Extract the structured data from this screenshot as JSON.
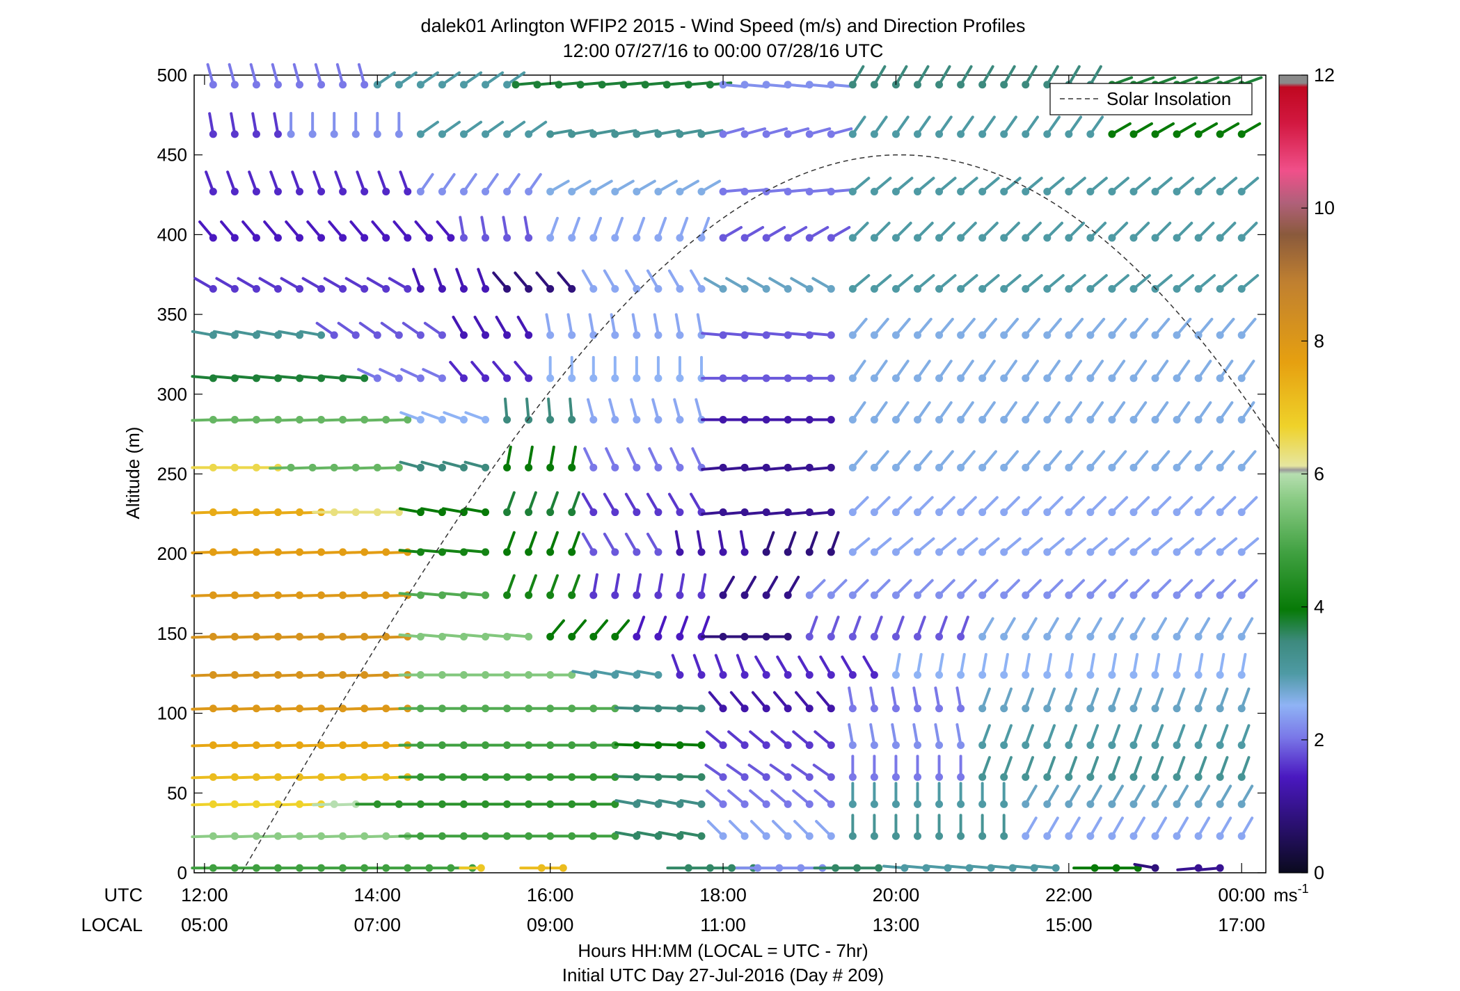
{
  "chart_data": {
    "type": "scatter",
    "title": "dalek01 Arlington WFIP2 2015 - Wind Speed (m/s) and Direction Profiles",
    "subtitle": "12:00 07/27/16 to 00:00 07/28/16  UTC",
    "ylabel": "Altitude (m)",
    "xlabel": "Hours HH:MM  (LOCAL = UTC - 7hr)",
    "xlabel2": "Initial UTC Day 27-Jul-2016 (Day # 209)",
    "xlim": [
      12,
      24
    ],
    "ylim": [
      0,
      500
    ],
    "x_ticks_utc": [
      "12:00",
      "14:00",
      "16:00",
      "18:00",
      "20:00",
      "22:00",
      "00:00"
    ],
    "x_ticks_local": [
      "05:00",
      "07:00",
      "09:00",
      "11:00",
      "13:00",
      "15:00",
      "17:00"
    ],
    "x_tick_values": [
      12,
      14,
      16,
      18,
      20,
      22,
      24
    ],
    "x_row_label_utc": "UTC",
    "x_row_label_local": "LOCAL",
    "y_ticks": [
      0,
      50,
      100,
      150,
      200,
      250,
      300,
      350,
      400,
      450,
      500
    ],
    "legend": {
      "label": "Solar Insolation",
      "placement": "top-right"
    },
    "colorbar": {
      "range": [
        0,
        12
      ],
      "ticks": [
        0,
        2,
        4,
        6,
        8,
        10,
        12
      ],
      "unit": "ms",
      "unit_exp": "-1"
    },
    "solar_insolation_curve": {
      "start_hour": 12.43,
      "peak_hour": 20.05,
      "peak_altitude_equiv": 450,
      "end_hour": 24.5,
      "end_altitude_equiv": 260
    },
    "profile_altitudes": [
      3,
      23,
      43,
      60,
      80,
      103,
      124,
      148,
      174,
      201,
      226,
      254,
      284,
      310,
      337,
      366,
      398,
      427,
      463,
      494
    ],
    "time_step_hours": 0.25,
    "row_descriptions": [
      {
        "altitude": 494,
        "segments": [
          [
            12.1,
            14.0,
            2.0,
            165
          ],
          [
            14.0,
            15.6,
            3.0,
            235
          ],
          [
            15.6,
            18.0,
            3.8,
            265
          ],
          [
            18.0,
            19.5,
            2.2,
            275
          ],
          [
            19.5,
            22.5,
            3.5,
            210
          ],
          [
            22.5,
            24.1,
            3.8,
            250
          ]
        ]
      },
      {
        "altitude": 463,
        "segments": [
          [
            12.1,
            13.0,
            1.6,
            170
          ],
          [
            13.0,
            14.5,
            2.2,
            180
          ],
          [
            14.5,
            16.0,
            3.0,
            235
          ],
          [
            16.0,
            18.0,
            3.2,
            260
          ],
          [
            18.0,
            19.5,
            2.0,
            255
          ],
          [
            19.5,
            22.5,
            3.0,
            215
          ],
          [
            22.5,
            24.1,
            4.0,
            240
          ]
        ]
      },
      {
        "altitude": 427,
        "segments": [
          [
            12.1,
            14.5,
            1.5,
            160
          ],
          [
            14.5,
            16.0,
            2.2,
            215
          ],
          [
            16.0,
            18.0,
            2.6,
            240
          ],
          [
            18.0,
            19.5,
            2.0,
            265
          ],
          [
            19.5,
            24.1,
            3.0,
            230
          ]
        ]
      },
      {
        "altitude": 398,
        "segments": [
          [
            12.1,
            15.0,
            1.4,
            140
          ],
          [
            15.0,
            16.0,
            1.8,
            170
          ],
          [
            16.0,
            18.0,
            2.4,
            200
          ],
          [
            18.0,
            19.5,
            1.8,
            240
          ],
          [
            19.5,
            24.1,
            3.0,
            225
          ]
        ]
      },
      {
        "altitude": 366,
        "segments": [
          [
            12.1,
            14.5,
            1.6,
            120
          ],
          [
            14.5,
            15.5,
            1.3,
            160
          ],
          [
            15.5,
            16.5,
            0.8,
            140
          ],
          [
            16.5,
            18.0,
            2.4,
            150
          ],
          [
            18.0,
            19.5,
            2.8,
            120
          ],
          [
            19.5,
            24.1,
            3.0,
            230
          ]
        ]
      },
      {
        "altitude": 337,
        "segments": [
          [
            12.1,
            13.5,
            3.2,
            100
          ],
          [
            13.5,
            15.0,
            1.8,
            125
          ],
          [
            15.0,
            16.0,
            1.3,
            150
          ],
          [
            16.0,
            18.0,
            2.4,
            170
          ],
          [
            18.0,
            19.5,
            1.8,
            95
          ],
          [
            19.5,
            24.1,
            2.6,
            220
          ]
        ]
      },
      {
        "altitude": 310,
        "segments": [
          [
            12.1,
            14.0,
            3.8,
            95
          ],
          [
            14.0,
            15.0,
            2.0,
            115
          ],
          [
            15.0,
            16.0,
            1.5,
            140
          ],
          [
            16.0,
            18.0,
            2.5,
            180
          ],
          [
            18.0,
            19.5,
            1.8,
            90
          ],
          [
            19.5,
            24.1,
            2.6,
            215
          ]
        ]
      },
      {
        "altitude": 284,
        "segments": [
          [
            12.1,
            14.5,
            5.2,
            88
          ],
          [
            14.5,
            15.5,
            2.5,
            110
          ],
          [
            15.5,
            16.5,
            3.5,
            175
          ],
          [
            16.5,
            18.0,
            2.4,
            165
          ],
          [
            18.0,
            19.5,
            1.2,
            90
          ],
          [
            19.5,
            24.1,
            2.6,
            215
          ]
        ]
      },
      {
        "altitude": 254,
        "segments": [
          [
            12.1,
            13.0,
            6.6,
            90
          ],
          [
            13.0,
            14.5,
            5.2,
            88
          ],
          [
            14.5,
            15.5,
            3.5,
            105
          ],
          [
            15.5,
            16.5,
            4.0,
            190
          ],
          [
            16.5,
            18.0,
            2.0,
            155
          ],
          [
            18.0,
            19.5,
            1.0,
            85
          ],
          [
            19.5,
            24.1,
            2.6,
            220
          ]
        ]
      },
      {
        "altitude": 226,
        "segments": [
          [
            12.1,
            13.5,
            7.5,
            88
          ],
          [
            13.5,
            14.5,
            6.3,
            90
          ],
          [
            14.5,
            15.5,
            4.0,
            100
          ],
          [
            15.5,
            16.5,
            3.8,
            200
          ],
          [
            16.5,
            18.0,
            1.6,
            150
          ],
          [
            18.0,
            19.5,
            1.0,
            85
          ],
          [
            19.5,
            24.1,
            2.4,
            225
          ]
        ]
      },
      {
        "altitude": 201,
        "segments": [
          [
            12.1,
            14.5,
            7.8,
            88
          ],
          [
            14.5,
            15.5,
            4.2,
            95
          ],
          [
            15.5,
            16.5,
            4.0,
            200
          ],
          [
            16.5,
            17.5,
            1.8,
            150
          ],
          [
            17.5,
            18.5,
            1.2,
            170
          ],
          [
            18.5,
            19.5,
            0.8,
            200
          ],
          [
            19.5,
            24.1,
            2.4,
            230
          ]
        ]
      },
      {
        "altitude": 174,
        "segments": [
          [
            12.1,
            14.5,
            8.0,
            88
          ],
          [
            14.5,
            15.5,
            5.0,
            95
          ],
          [
            15.5,
            16.5,
            4.2,
            200
          ],
          [
            16.5,
            18.0,
            1.6,
            190
          ],
          [
            18.0,
            19.0,
            0.9,
            210
          ],
          [
            19.0,
            24.1,
            2.2,
            225
          ]
        ]
      },
      {
        "altitude": 148,
        "segments": [
          [
            12.1,
            14.5,
            8.2,
            88
          ],
          [
            14.5,
            16.0,
            5.5,
            95
          ],
          [
            16.0,
            17.0,
            4.0,
            220
          ],
          [
            17.0,
            18.0,
            1.4,
            200
          ],
          [
            18.0,
            19.0,
            0.8,
            90
          ],
          [
            19.0,
            21.0,
            1.8,
            200
          ],
          [
            21.0,
            24.1,
            2.6,
            210
          ]
        ]
      },
      {
        "altitude": 124,
        "segments": [
          [
            12.1,
            14.5,
            8.2,
            88
          ],
          [
            14.5,
            16.5,
            5.5,
            90
          ],
          [
            16.5,
            17.5,
            3.0,
            100
          ],
          [
            17.5,
            18.5,
            1.5,
            160
          ],
          [
            18.5,
            20.0,
            1.5,
            150
          ],
          [
            20.0,
            24.1,
            2.5,
            190
          ]
        ]
      },
      {
        "altitude": 103,
        "segments": [
          [
            12.1,
            14.5,
            8.0,
            88
          ],
          [
            14.5,
            17.0,
            5.0,
            90
          ],
          [
            17.0,
            18.0,
            3.5,
            92
          ],
          [
            18.0,
            19.5,
            1.2,
            140
          ],
          [
            19.5,
            21.0,
            2.0,
            170
          ],
          [
            21.0,
            24.1,
            2.8,
            200
          ]
        ]
      },
      {
        "altitude": 80,
        "segments": [
          [
            12.1,
            14.5,
            7.6,
            88
          ],
          [
            14.5,
            17.0,
            4.8,
            90
          ],
          [
            17.0,
            18.0,
            4.0,
            92
          ],
          [
            18.0,
            19.5,
            1.6,
            130
          ],
          [
            19.5,
            21.0,
            2.2,
            170
          ],
          [
            21.0,
            24.1,
            3.0,
            200
          ]
        ]
      },
      {
        "altitude": 60,
        "segments": [
          [
            12.1,
            14.5,
            7.2,
            88
          ],
          [
            14.5,
            17.0,
            4.6,
            90
          ],
          [
            17.0,
            18.0,
            3.6,
            92
          ],
          [
            18.0,
            19.5,
            1.8,
            125
          ],
          [
            19.5,
            21.0,
            2.0,
            180
          ],
          [
            21.0,
            24.1,
            3.2,
            200
          ]
        ]
      },
      {
        "altitude": 43,
        "segments": [
          [
            12.1,
            13.5,
            6.8,
            88
          ],
          [
            13.5,
            14.0,
            6.0,
            88
          ],
          [
            14.0,
            17.0,
            4.5,
            90
          ],
          [
            17.0,
            18.0,
            3.4,
            100
          ],
          [
            18.0,
            19.5,
            2.0,
            130
          ],
          [
            19.5,
            21.5,
            3.0,
            180
          ],
          [
            21.5,
            24.1,
            2.8,
            210
          ]
        ]
      },
      {
        "altitude": 23,
        "segments": [
          [
            12.1,
            14.5,
            5.6,
            88
          ],
          [
            14.5,
            17.0,
            4.8,
            90
          ],
          [
            17.0,
            18.0,
            3.6,
            100
          ],
          [
            18.0,
            19.5,
            2.4,
            135
          ],
          [
            19.5,
            21.5,
            3.2,
            180
          ],
          [
            21.5,
            24.1,
            2.4,
            210
          ]
        ]
      },
      {
        "altitude": 3,
        "segments": [
          [
            12.1,
            15.2,
            4.8,
            90
          ],
          [
            15.2,
            15.4,
            7.0,
            90
          ],
          [
            15.9,
            16.3,
            7.2,
            90
          ],
          [
            17.6,
            18.4,
            3.6,
            90
          ],
          [
            18.4,
            19.3,
            2.2,
            90
          ],
          [
            19.3,
            20.0,
            3.6,
            90
          ],
          [
            20.1,
            22.0,
            3.0,
            95
          ],
          [
            22.3,
            23.0,
            4.0,
            90
          ],
          [
            23.0,
            23.2,
            0.8,
            100
          ],
          [
            23.5,
            24.0,
            1.0,
            85
          ]
        ]
      }
    ]
  }
}
